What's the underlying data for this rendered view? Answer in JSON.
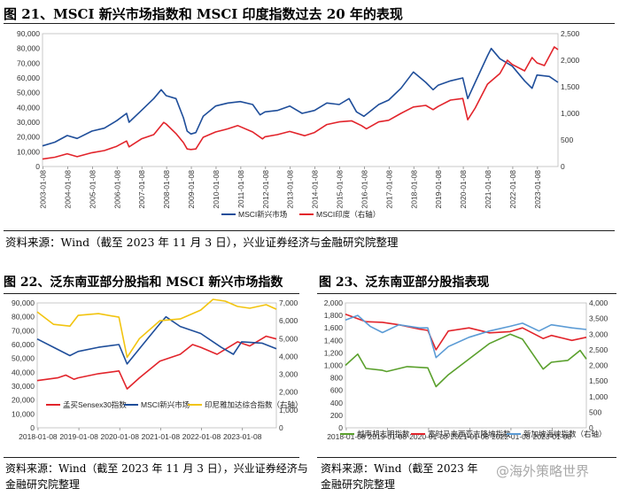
{
  "fig21": {
    "title": "图 21、MSCI 新兴市场指数和 MSCI 印度指数过去 20 年的表现",
    "source": "资料来源：Wind（截至 2023 年 11 月 3 日），兴业证券经济与金融研究院整理"
  },
  "fig22": {
    "title": "图 22、泛东南亚部分股指和 MSCI 新兴市场指数",
    "source_line1": "资料来源：Wind（截至 2023 年 11 月 3 日），兴业证券经济与",
    "source_line2": "金融研究院整理"
  },
  "fig23": {
    "title": "图 23、泛东南亚部分股指表现",
    "source_line1": "资料来源：Wind（截至 2023 年",
    "source_line2": "金融研究院整理"
  },
  "watermark": "@海外策略世界",
  "chart_data": [
    {
      "id": "fig21",
      "type": "line",
      "title": "MSCI新兴市场指数和MSCI印度指数过去20年的表现",
      "left_axis": {
        "min": 0,
        "max": 90000,
        "ticks": [
          "0",
          "10,000",
          "20,000",
          "30,000",
          "40,000",
          "50,000",
          "60,000",
          "70,000",
          "80,000",
          "90,000"
        ]
      },
      "right_axis": {
        "min": 0,
        "max": 2500,
        "ticks": [
          "0",
          "500",
          "1,000",
          "1,500",
          "2,000",
          "2,500"
        ]
      },
      "x_ticks": [
        "2003-01-08",
        "2004-01-08",
        "2005-01-08",
        "2006-01-08",
        "2007-01-08",
        "2008-01-08",
        "2009-01-08",
        "2010-01-08",
        "2011-01-08",
        "2012-01-08",
        "2013-01-08",
        "2014-01-08",
        "2015-01-08",
        "2016-01-08",
        "2017-01-08",
        "2018-01-08",
        "2019-01-08",
        "2020-01-08",
        "2021-01-08",
        "2022-01-08",
        "2023-01-08"
      ],
      "x_range": [
        2003.0,
        2023.85
      ],
      "series": [
        {
          "name": "MSCI新兴市场",
          "axis": "left",
          "color": "#1f4e9a",
          "points": [
            [
              2003.0,
              14000
            ],
            [
              2003.5,
              16500
            ],
            [
              2004.0,
              21000
            ],
            [
              2004.4,
              19000
            ],
            [
              2005.0,
              24000
            ],
            [
              2005.5,
              26000
            ],
            [
              2006.0,
              31000
            ],
            [
              2006.4,
              36000
            ],
            [
              2006.5,
              30000
            ],
            [
              2007.0,
              38000
            ],
            [
              2007.5,
              46000
            ],
            [
              2007.8,
              52000
            ],
            [
              2008.0,
              48000
            ],
            [
              2008.4,
              46000
            ],
            [
              2008.7,
              33000
            ],
            [
              2008.85,
              24000
            ],
            [
              2009.0,
              22000
            ],
            [
              2009.2,
              23000
            ],
            [
              2009.5,
              34000
            ],
            [
              2010.0,
              41000
            ],
            [
              2010.5,
              43000
            ],
            [
              2011.0,
              44000
            ],
            [
              2011.5,
              42000
            ],
            [
              2011.8,
              35000
            ],
            [
              2012.0,
              37000
            ],
            [
              2012.5,
              38000
            ],
            [
              2013.0,
              41000
            ],
            [
              2013.5,
              36000
            ],
            [
              2014.0,
              38000
            ],
            [
              2014.5,
              43000
            ],
            [
              2015.0,
              42000
            ],
            [
              2015.4,
              46000
            ],
            [
              2015.7,
              37000
            ],
            [
              2016.0,
              34000
            ],
            [
              2016.6,
              42000
            ],
            [
              2017.0,
              45000
            ],
            [
              2017.5,
              53000
            ],
            [
              2018.0,
              64000
            ],
            [
              2018.5,
              57000
            ],
            [
              2018.8,
              52000
            ],
            [
              2019.0,
              55000
            ],
            [
              2019.5,
              58000
            ],
            [
              2020.0,
              60000
            ],
            [
              2020.2,
              46000
            ],
            [
              2020.5,
              57000
            ],
            [
              2021.0,
              75000
            ],
            [
              2021.15,
              80000
            ],
            [
              2021.5,
              73000
            ],
            [
              2022.0,
              68000
            ],
            [
              2022.5,
              58000
            ],
            [
              2022.8,
              53000
            ],
            [
              2023.0,
              62000
            ],
            [
              2023.5,
              61000
            ],
            [
              2023.85,
              57000
            ]
          ]
        },
        {
          "name": "MSCI印度（右轴）",
          "axis": "right",
          "color": "#e2242b",
          "points": [
            [
              2003.0,
              140
            ],
            [
              2003.5,
              175
            ],
            [
              2004.0,
              240
            ],
            [
              2004.4,
              185
            ],
            [
              2005.0,
              260
            ],
            [
              2005.5,
              300
            ],
            [
              2006.0,
              380
            ],
            [
              2006.4,
              480
            ],
            [
              2006.5,
              370
            ],
            [
              2007.0,
              520
            ],
            [
              2007.5,
              600
            ],
            [
              2007.9,
              830
            ],
            [
              2008.0,
              800
            ],
            [
              2008.4,
              620
            ],
            [
              2008.7,
              450
            ],
            [
              2008.85,
              330
            ],
            [
              2009.0,
              320
            ],
            [
              2009.2,
              330
            ],
            [
              2009.5,
              550
            ],
            [
              2010.0,
              650
            ],
            [
              2010.5,
              710
            ],
            [
              2010.9,
              770
            ],
            [
              2011.5,
              650
            ],
            [
              2011.9,
              520
            ],
            [
              2012.0,
              560
            ],
            [
              2012.5,
              600
            ],
            [
              2013.0,
              660
            ],
            [
              2013.6,
              580
            ],
            [
              2014.0,
              640
            ],
            [
              2014.5,
              790
            ],
            [
              2015.0,
              840
            ],
            [
              2015.5,
              860
            ],
            [
              2015.9,
              770
            ],
            [
              2016.1,
              710
            ],
            [
              2016.6,
              840
            ],
            [
              2017.0,
              870
            ],
            [
              2017.5,
              1000
            ],
            [
              2018.0,
              1120
            ],
            [
              2018.5,
              1150
            ],
            [
              2018.8,
              1070
            ],
            [
              2019.0,
              1130
            ],
            [
              2019.5,
              1250
            ],
            [
              2020.0,
              1280
            ],
            [
              2020.2,
              880
            ],
            [
              2020.5,
              1100
            ],
            [
              2021.0,
              1550
            ],
            [
              2021.5,
              1750
            ],
            [
              2021.8,
              2000
            ],
            [
              2022.0,
              1920
            ],
            [
              2022.5,
              1800
            ],
            [
              2022.8,
              2050
            ],
            [
              2023.0,
              1950
            ],
            [
              2023.3,
              1900
            ],
            [
              2023.7,
              2250
            ],
            [
              2023.85,
              2200
            ]
          ]
        }
      ]
    },
    {
      "id": "fig22",
      "type": "line",
      "title": "泛东南亚部分股指和MSCI新兴市场指数",
      "left_axis": {
        "min": 0,
        "max": 90000,
        "ticks": [
          "0",
          "10,000",
          "20,000",
          "30,000",
          "40,000",
          "50,000",
          "60,000",
          "70,000",
          "80,000",
          "90,000"
        ]
      },
      "right_axis": {
        "min": 0,
        "max": 7000,
        "ticks": [
          "0",
          "1,000",
          "2,000",
          "3,000",
          "4,000",
          "5,000",
          "6,000",
          "7,000"
        ]
      },
      "x_ticks": [
        "2018-01-08",
        "2019-01-08",
        "2020-01-08",
        "2021-01-08",
        "2022-01-08",
        "2023-01-08"
      ],
      "x_range": [
        2018.0,
        2023.85
      ],
      "series": [
        {
          "name": "孟买Sensex30指数",
          "axis": "left",
          "color": "#e2242b",
          "points": [
            [
              2018.0,
              34000
            ],
            [
              2018.5,
              36000
            ],
            [
              2018.7,
              38000
            ],
            [
              2018.9,
              35000
            ],
            [
              2019.0,
              36000
            ],
            [
              2019.5,
              39000
            ],
            [
              2020.0,
              41000
            ],
            [
              2020.2,
              28000
            ],
            [
              2020.5,
              36000
            ],
            [
              2021.0,
              48000
            ],
            [
              2021.5,
              53000
            ],
            [
              2021.8,
              60000
            ],
            [
              2022.0,
              58000
            ],
            [
              2022.4,
              53000
            ],
            [
              2022.9,
              62000
            ],
            [
              2023.2,
              59000
            ],
            [
              2023.6,
              66000
            ],
            [
              2023.85,
              64000
            ]
          ]
        },
        {
          "name": "MSCI新兴市场",
          "axis": "left",
          "color": "#1f4e9a",
          "points": [
            [
              2018.0,
              64000
            ],
            [
              2018.4,
              58000
            ],
            [
              2018.8,
              52000
            ],
            [
              2019.0,
              55000
            ],
            [
              2019.5,
              58000
            ],
            [
              2020.0,
              60000
            ],
            [
              2020.2,
              46000
            ],
            [
              2020.5,
              57000
            ],
            [
              2021.0,
              75000
            ],
            [
              2021.15,
              80000
            ],
            [
              2021.5,
              73000
            ],
            [
              2022.0,
              68000
            ],
            [
              2022.5,
              58000
            ],
            [
              2022.8,
              53000
            ],
            [
              2023.0,
              62000
            ],
            [
              2023.5,
              61000
            ],
            [
              2023.85,
              57000
            ]
          ]
        },
        {
          "name": "印尼雅加达综合指数（右轴）",
          "axis": "right",
          "color": "#f2c40f",
          "points": [
            [
              2018.0,
              6500
            ],
            [
              2018.4,
              5800
            ],
            [
              2018.8,
              5700
            ],
            [
              2019.0,
              6300
            ],
            [
              2019.5,
              6400
            ],
            [
              2020.0,
              6200
            ],
            [
              2020.2,
              3950
            ],
            [
              2020.5,
              5000
            ],
            [
              2021.0,
              6000
            ],
            [
              2021.5,
              6100
            ],
            [
              2022.0,
              6600
            ],
            [
              2022.3,
              7200
            ],
            [
              2022.6,
              7100
            ],
            [
              2022.9,
              6800
            ],
            [
              2023.2,
              6700
            ],
            [
              2023.6,
              6900
            ],
            [
              2023.85,
              6650
            ]
          ]
        }
      ]
    },
    {
      "id": "fig23",
      "type": "line",
      "title": "泛东南亚部分股指表现",
      "left_axis": {
        "min": 0,
        "max": 2000,
        "ticks": [
          "0",
          "200",
          "400",
          "600",
          "800",
          "1,000",
          "1,200",
          "1,400",
          "1,600",
          "1,800",
          "2,000"
        ]
      },
      "right_axis": {
        "min": 0,
        "max": 4000,
        "ticks": [
          "0",
          "500",
          "1,000",
          "1,500",
          "2,000",
          "2,500",
          "3,000",
          "3,500",
          "4,000"
        ]
      },
      "x_ticks": [
        "2018-01-08",
        "2019-01-08",
        "2020-01-08",
        "2021-01-08",
        "2022-01-08",
        "2023-01-08"
      ],
      "x_range": [
        2018.0,
        2023.85
      ],
      "series": [
        {
          "name": "越南胡志明指数",
          "axis": "left",
          "color": "#5aa02c",
          "points": [
            [
              2018.0,
              1000
            ],
            [
              2018.3,
              1180
            ],
            [
              2018.5,
              950
            ],
            [
              2018.9,
              920
            ],
            [
              2019.0,
              900
            ],
            [
              2019.5,
              980
            ],
            [
              2020.0,
              960
            ],
            [
              2020.2,
              660
            ],
            [
              2020.5,
              850
            ],
            [
              2021.0,
              1100
            ],
            [
              2021.5,
              1350
            ],
            [
              2022.0,
              1500
            ],
            [
              2022.3,
              1420
            ],
            [
              2022.8,
              940
            ],
            [
              2023.0,
              1050
            ],
            [
              2023.4,
              1080
            ],
            [
              2023.7,
              1240
            ],
            [
              2023.85,
              1100
            ]
          ]
        },
        {
          "name": "富时马来西亚吉隆坡指数",
          "axis": "left",
          "color": "#e2242b",
          "points": [
            [
              2018.0,
              1820
            ],
            [
              2018.5,
              1700
            ],
            [
              2018.9,
              1690
            ],
            [
              2019.3,
              1650
            ],
            [
              2019.8,
              1580
            ],
            [
              2020.0,
              1560
            ],
            [
              2020.2,
              1250
            ],
            [
              2020.5,
              1550
            ],
            [
              2021.0,
              1600
            ],
            [
              2021.5,
              1520
            ],
            [
              2022.0,
              1540
            ],
            [
              2022.3,
              1600
            ],
            [
              2022.8,
              1430
            ],
            [
              2023.0,
              1480
            ],
            [
              2023.5,
              1400
            ],
            [
              2023.85,
              1450
            ]
          ]
        },
        {
          "name": "新加坡海峡指数（右轴）",
          "axis": "right",
          "color": "#5b9bd5",
          "points": [
            [
              2018.0,
              3450
            ],
            [
              2018.3,
              3600
            ],
            [
              2018.6,
              3250
            ],
            [
              2018.9,
              3050
            ],
            [
              2019.3,
              3300
            ],
            [
              2019.8,
              3200
            ],
            [
              2020.0,
              3200
            ],
            [
              2020.2,
              2250
            ],
            [
              2020.5,
              2600
            ],
            [
              2021.0,
              2900
            ],
            [
              2021.5,
              3100
            ],
            [
              2022.0,
              3250
            ],
            [
              2022.3,
              3350
            ],
            [
              2022.7,
              3100
            ],
            [
              2023.0,
              3300
            ],
            [
              2023.5,
              3200
            ],
            [
              2023.85,
              3150
            ]
          ]
        }
      ]
    }
  ]
}
